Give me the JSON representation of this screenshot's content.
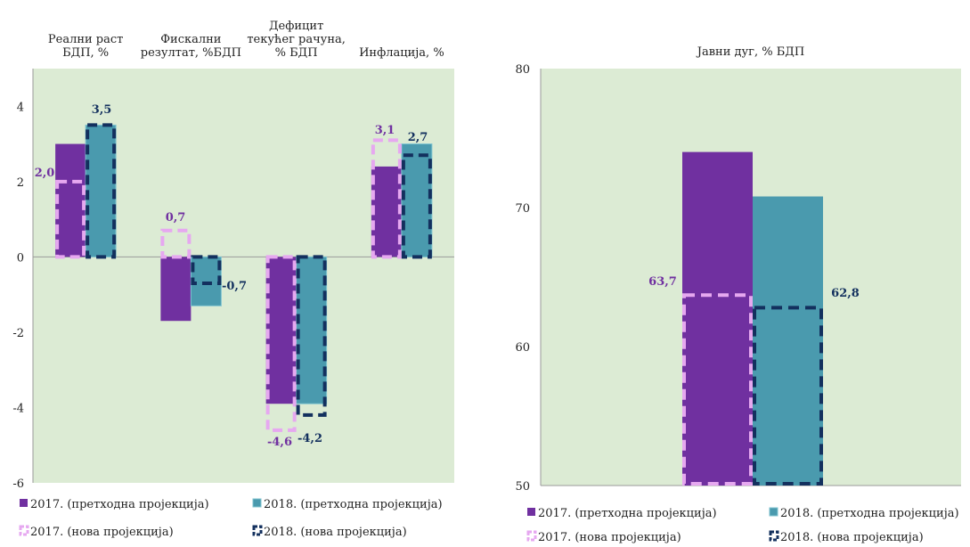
{
  "chart_data": [
    {
      "type": "bar",
      "categories": [
        "Реални раст БДП, %",
        "Фискални резултат, %БДП",
        "Дефицит текућег рачуна, % БДП",
        "Инфлација, %"
      ],
      "category_label_lines": [
        [
          "Реални раст",
          "БДП, %"
        ],
        [
          "Фискални",
          "резултат, %БДП"
        ],
        [
          "Дефицит",
          "текућег рачуна,",
          "% БДП"
        ],
        [
          "Инфлација, %"
        ]
      ],
      "series": [
        {
          "name": "2017. (претходна пројекција)",
          "values": [
            3.0,
            -1.7,
            -3.9,
            2.4
          ],
          "color": "#7030A0",
          "style": "solid"
        },
        {
          "name": "2018. (претходна пројекција)",
          "values": [
            3.5,
            -1.3,
            -3.9,
            3.0
          ],
          "color": "#4A9AAE",
          "style": "solid"
        },
        {
          "name": "2017. (нова пројекција)",
          "values": [
            2.0,
            0.7,
            -4.6,
            3.1
          ],
          "color": "#E6A8F0",
          "style": "dashed"
        },
        {
          "name": "2018. (нова пројекција)",
          "values": [
            3.5,
            -0.7,
            -4.2,
            2.7
          ],
          "color": "#13305E",
          "style": "dashed"
        }
      ],
      "data_labels": {
        "2017_new": [
          "2,0",
          "0,7",
          "-4,6",
          "3,1"
        ],
        "2018_new": [
          "3,5",
          "-0,7",
          "-4,2",
          "2,7"
        ]
      },
      "ylim": [
        -6,
        5
      ],
      "yticks": [
        -6,
        -4,
        -2,
        0,
        2,
        4
      ],
      "plot_background": "#DCEBD4",
      "legend_position": "bottom"
    },
    {
      "type": "bar",
      "title": "Јавни дуг, % БДП",
      "categories": [
        "Јавни дуг, % БДП"
      ],
      "series": [
        {
          "name": "2017. (претходна пројекција)",
          "values": [
            74.0
          ],
          "color": "#7030A0",
          "style": "solid"
        },
        {
          "name": "2018. (претходна пројекција)",
          "values": [
            70.8
          ],
          "color": "#4A9AAE",
          "style": "solid"
        },
        {
          "name": "2017. (нова пројекција)",
          "values": [
            63.7
          ],
          "color": "#E6A8F0",
          "style": "dashed"
        },
        {
          "name": "2018. (нова пројекција)",
          "values": [
            62.8
          ],
          "color": "#13305E",
          "style": "dashed"
        }
      ],
      "data_labels": {
        "2017_new": [
          "63,7"
        ],
        "2018_new": [
          "62,8"
        ]
      },
      "ylim": [
        50,
        80
      ],
      "yticks": [
        50,
        60,
        70,
        80
      ],
      "plot_background": "#DCEBD4",
      "legend_position": "bottom"
    }
  ],
  "legend": {
    "items": [
      {
        "label": "2017. (претходна пројекција)",
        "color": "#7030A0",
        "style": "solid"
      },
      {
        "label": "2018. (претходна пројекција)",
        "color": "#4A9AAE",
        "style": "solid"
      },
      {
        "label": "2017. (нова пројекција)",
        "color": "#E6A8F0",
        "style": "dashed"
      },
      {
        "label": "2018. (нова пројекција)",
        "color": "#13305E",
        "style": "dashed"
      }
    ]
  }
}
